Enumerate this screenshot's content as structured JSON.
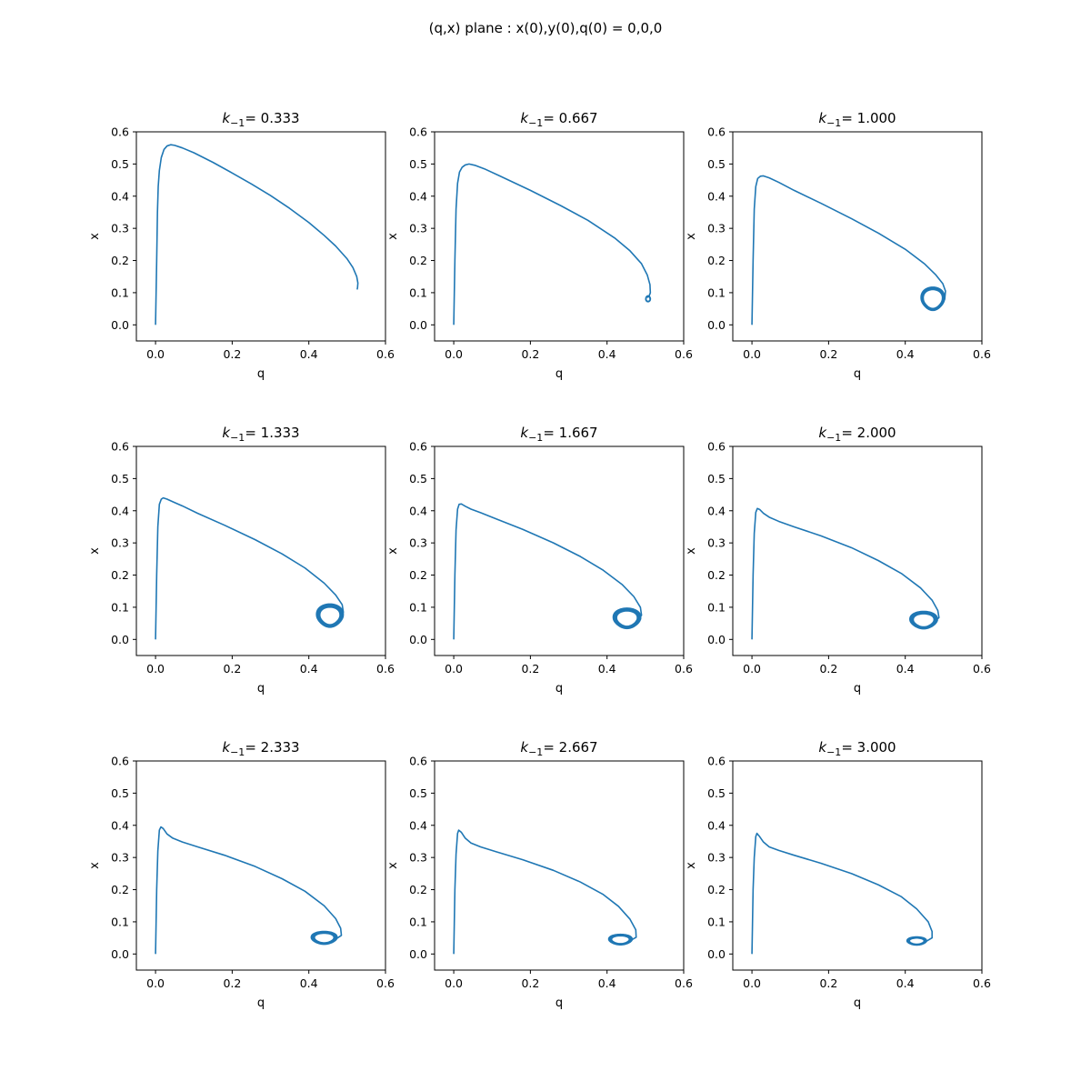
{
  "figure": {
    "suptitle": "(q,x) plane : x(0),y(0),q(0) = 0,0,0",
    "line_color": "#1f77b4"
  },
  "chart_data": [
    {
      "type": "line",
      "title_prefix": "k",
      "title_subscript": "−1",
      "title_value": "=  0.333",
      "xlabel": "q",
      "ylabel": "x",
      "xlim": [
        -0.05,
        0.6
      ],
      "ylim": [
        -0.05,
        0.6
      ],
      "xticks": [
        "0.0",
        "0.2",
        "0.4",
        "0.6"
      ],
      "yticks": [
        "0.0",
        "0.1",
        "0.2",
        "0.3",
        "0.4",
        "0.5",
        "0.6"
      ],
      "series": [
        {
          "x": [
            0.0,
            0.003,
            0.005,
            0.007,
            0.01,
            0.015,
            0.022,
            0.03,
            0.04,
            0.05,
            0.07,
            0.1,
            0.15,
            0.2,
            0.25,
            0.3,
            0.35,
            0.4,
            0.44,
            0.47,
            0.5,
            0.515,
            0.525,
            0.528,
            0.527,
            0.526
          ],
          "y": [
            0.0,
            0.2,
            0.35,
            0.43,
            0.48,
            0.52,
            0.545,
            0.556,
            0.56,
            0.558,
            0.55,
            0.535,
            0.505,
            0.472,
            0.438,
            0.402,
            0.362,
            0.318,
            0.278,
            0.245,
            0.205,
            0.178,
            0.15,
            0.13,
            0.115,
            0.11
          ]
        }
      ],
      "loop": null
    },
    {
      "type": "line",
      "title_prefix": "k",
      "title_subscript": "−1",
      "title_value": "=  0.667",
      "xlabel": "q",
      "ylabel": "x",
      "xlim": [
        -0.05,
        0.6
      ],
      "ylim": [
        -0.05,
        0.6
      ],
      "xticks": [
        "0.0",
        "0.2",
        "0.4",
        "0.6"
      ],
      "yticks": [
        "0.0",
        "0.1",
        "0.2",
        "0.3",
        "0.4",
        "0.5",
        "0.6"
      ],
      "series": [
        {
          "x": [
            0.0,
            0.003,
            0.006,
            0.01,
            0.015,
            0.022,
            0.03,
            0.04,
            0.055,
            0.08,
            0.12,
            0.2,
            0.28,
            0.35,
            0.42,
            0.46,
            0.49,
            0.505,
            0.512,
            0.513,
            0.51,
            0.505
          ],
          "y": [
            0.0,
            0.2,
            0.36,
            0.44,
            0.475,
            0.49,
            0.497,
            0.5,
            0.496,
            0.485,
            0.463,
            0.418,
            0.37,
            0.325,
            0.27,
            0.23,
            0.19,
            0.155,
            0.125,
            0.1,
            0.09,
            0.085
          ]
        }
      ],
      "loop": {
        "cx": 0.507,
        "cy": 0.08,
        "rx": 0.006,
        "ry": 0.01,
        "n": 3,
        "skew": 0.0
      }
    },
    {
      "type": "line",
      "title_prefix": "k",
      "title_subscript": "−1",
      "title_value": "=  1.000",
      "xlabel": "q",
      "ylabel": "x",
      "xlim": [
        -0.05,
        0.6
      ],
      "ylim": [
        -0.05,
        0.6
      ],
      "xticks": [
        "0.0",
        "0.2",
        "0.4",
        "0.6"
      ],
      "yticks": [
        "0.0",
        "0.1",
        "0.2",
        "0.3",
        "0.4",
        "0.5",
        "0.6"
      ],
      "series": [
        {
          "x": [
            0.0,
            0.003,
            0.006,
            0.01,
            0.015,
            0.022,
            0.03,
            0.045,
            0.07,
            0.11,
            0.18,
            0.26,
            0.33,
            0.4,
            0.45,
            0.48,
            0.498,
            0.505,
            0.503,
            0.49
          ],
          "y": [
            0.0,
            0.2,
            0.36,
            0.43,
            0.455,
            0.462,
            0.463,
            0.457,
            0.443,
            0.418,
            0.378,
            0.33,
            0.285,
            0.235,
            0.19,
            0.155,
            0.128,
            0.105,
            0.08,
            0.06
          ]
        }
      ],
      "loop": {
        "cx": 0.472,
        "cy": 0.077,
        "rx": 0.03,
        "ry": 0.04,
        "n": 4,
        "skew": 0.45
      }
    },
    {
      "type": "line",
      "title_prefix": "k",
      "title_subscript": "−1",
      "title_value": "=  1.333",
      "xlabel": "q",
      "ylabel": "x",
      "xlim": [
        -0.05,
        0.6
      ],
      "ylim": [
        -0.05,
        0.6
      ],
      "xticks": [
        "0.0",
        "0.2",
        "0.4",
        "0.6"
      ],
      "yticks": [
        "0.0",
        "0.1",
        "0.2",
        "0.3",
        "0.4",
        "0.5",
        "0.6"
      ],
      "series": [
        {
          "x": [
            0.0,
            0.003,
            0.006,
            0.01,
            0.015,
            0.02,
            0.03,
            0.045,
            0.07,
            0.11,
            0.18,
            0.26,
            0.33,
            0.39,
            0.44,
            0.47,
            0.487,
            0.49,
            0.48
          ],
          "y": [
            0.0,
            0.2,
            0.35,
            0.42,
            0.436,
            0.44,
            0.436,
            0.428,
            0.415,
            0.392,
            0.355,
            0.31,
            0.266,
            0.222,
            0.175,
            0.138,
            0.108,
            0.085,
            0.06
          ]
        }
      ],
      "loop": {
        "cx": 0.455,
        "cy": 0.07,
        "rx": 0.034,
        "ry": 0.04,
        "n": 5,
        "skew": 0.45
      }
    },
    {
      "type": "line",
      "title_prefix": "k",
      "title_subscript": "−1",
      "title_value": "=  1.667",
      "xlabel": "q",
      "ylabel": "x",
      "xlim": [
        -0.05,
        0.6
      ],
      "ylim": [
        -0.05,
        0.6
      ],
      "xticks": [
        "0.0",
        "0.2",
        "0.4",
        "0.6"
      ],
      "yticks": [
        "0.0",
        "0.1",
        "0.2",
        "0.3",
        "0.4",
        "0.5",
        "0.6"
      ],
      "series": [
        {
          "x": [
            0.0,
            0.003,
            0.006,
            0.01,
            0.014,
            0.02,
            0.03,
            0.045,
            0.07,
            0.11,
            0.18,
            0.26,
            0.33,
            0.39,
            0.44,
            0.47,
            0.487,
            0.49,
            0.475
          ],
          "y": [
            0.0,
            0.2,
            0.34,
            0.405,
            0.42,
            0.421,
            0.414,
            0.405,
            0.394,
            0.375,
            0.342,
            0.3,
            0.258,
            0.215,
            0.17,
            0.133,
            0.1,
            0.075,
            0.055
          ]
        }
      ],
      "loop": {
        "cx": 0.452,
        "cy": 0.062,
        "rx": 0.035,
        "ry": 0.035,
        "n": 5,
        "skew": 0.45
      }
    },
    {
      "type": "line",
      "title_prefix": "k",
      "title_subscript": "−1",
      "title_value": "=  2.000",
      "xlabel": "q",
      "ylabel": "x",
      "xlim": [
        -0.05,
        0.6
      ],
      "ylim": [
        -0.05,
        0.6
      ],
      "xticks": [
        "0.0",
        "0.2",
        "0.4",
        "0.6"
      ],
      "yticks": [
        "0.0",
        "0.1",
        "0.2",
        "0.3",
        "0.4",
        "0.5",
        "0.6"
      ],
      "series": [
        {
          "x": [
            0.0,
            0.003,
            0.006,
            0.01,
            0.014,
            0.02,
            0.03,
            0.045,
            0.07,
            0.11,
            0.18,
            0.26,
            0.33,
            0.39,
            0.44,
            0.47,
            0.485,
            0.488,
            0.47
          ],
          "y": [
            0.0,
            0.2,
            0.33,
            0.395,
            0.407,
            0.404,
            0.392,
            0.38,
            0.367,
            0.35,
            0.322,
            0.285,
            0.245,
            0.205,
            0.16,
            0.122,
            0.09,
            0.068,
            0.048
          ]
        }
      ],
      "loop": {
        "cx": 0.448,
        "cy": 0.057,
        "rx": 0.035,
        "ry": 0.03,
        "n": 5,
        "skew": 0.45
      }
    },
    {
      "type": "line",
      "title_prefix": "k",
      "title_subscript": "−1",
      "title_value": "=  2.333",
      "xlabel": "q",
      "ylabel": "x",
      "xlim": [
        -0.05,
        0.6
      ],
      "ylim": [
        -0.05,
        0.6
      ],
      "xticks": [
        "0.0",
        "0.2",
        "0.4",
        "0.6"
      ],
      "yticks": [
        "0.0",
        "0.1",
        "0.2",
        "0.3",
        "0.4",
        "0.5",
        "0.6"
      ],
      "series": [
        {
          "x": [
            0.0,
            0.003,
            0.006,
            0.01,
            0.014,
            0.02,
            0.03,
            0.045,
            0.07,
            0.11,
            0.18,
            0.26,
            0.33,
            0.39,
            0.44,
            0.47,
            0.483,
            0.485,
            0.465
          ],
          "y": [
            0.0,
            0.2,
            0.32,
            0.385,
            0.395,
            0.39,
            0.373,
            0.36,
            0.348,
            0.333,
            0.307,
            0.272,
            0.234,
            0.195,
            0.15,
            0.11,
            0.08,
            0.058,
            0.042
          ]
        }
      ],
      "loop": {
        "cx": 0.44,
        "cy": 0.048,
        "rx": 0.033,
        "ry": 0.022,
        "n": 5,
        "skew": 0.4
      }
    },
    {
      "type": "line",
      "title_prefix": "k",
      "title_subscript": "−1",
      "title_value": "=  2.667",
      "xlabel": "q",
      "ylabel": "x",
      "xlim": [
        -0.05,
        0.6
      ],
      "ylim": [
        -0.05,
        0.6
      ],
      "xticks": [
        "0.0",
        "0.2",
        "0.4",
        "0.6"
      ],
      "yticks": [
        "0.0",
        "0.1",
        "0.2",
        "0.3",
        "0.4",
        "0.5",
        "0.6"
      ],
      "series": [
        {
          "x": [
            0.0,
            0.003,
            0.006,
            0.01,
            0.013,
            0.02,
            0.03,
            0.045,
            0.07,
            0.11,
            0.18,
            0.26,
            0.33,
            0.39,
            0.43,
            0.46,
            0.475,
            0.476,
            0.455
          ],
          "y": [
            0.0,
            0.2,
            0.31,
            0.375,
            0.385,
            0.378,
            0.36,
            0.345,
            0.333,
            0.318,
            0.293,
            0.26,
            0.224,
            0.185,
            0.148,
            0.108,
            0.075,
            0.052,
            0.038
          ]
        }
      ],
      "loop": {
        "cx": 0.435,
        "cy": 0.043,
        "rx": 0.03,
        "ry": 0.018,
        "n": 5,
        "skew": 0.4
      }
    },
    {
      "type": "line",
      "title_prefix": "k",
      "title_subscript": "−1",
      "title_value": "=  3.000",
      "xlabel": "q",
      "ylabel": "x",
      "xlim": [
        -0.05,
        0.6
      ],
      "ylim": [
        -0.05,
        0.6
      ],
      "xticks": [
        "0.0",
        "0.2",
        "0.4",
        "0.6"
      ],
      "yticks": [
        "0.0",
        "0.1",
        "0.2",
        "0.3",
        "0.4",
        "0.5",
        "0.6"
      ],
      "series": [
        {
          "x": [
            0.0,
            0.003,
            0.006,
            0.01,
            0.013,
            0.02,
            0.03,
            0.045,
            0.07,
            0.11,
            0.18,
            0.26,
            0.33,
            0.39,
            0.43,
            0.46,
            0.47,
            0.47,
            0.45
          ],
          "y": [
            0.0,
            0.2,
            0.3,
            0.365,
            0.375,
            0.365,
            0.348,
            0.333,
            0.322,
            0.307,
            0.282,
            0.25,
            0.215,
            0.178,
            0.14,
            0.1,
            0.07,
            0.05,
            0.036
          ]
        }
      ],
      "loop": {
        "cx": 0.43,
        "cy": 0.039,
        "rx": 0.025,
        "ry": 0.014,
        "n": 5,
        "skew": 0.35
      }
    }
  ]
}
